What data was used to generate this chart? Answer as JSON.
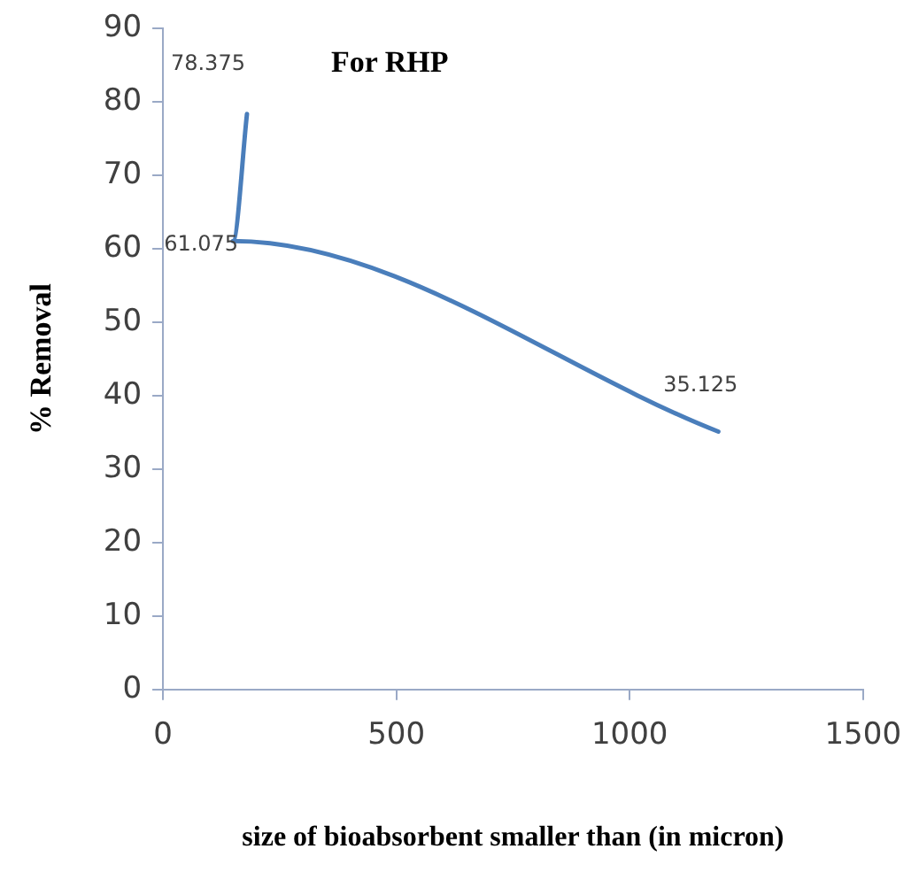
{
  "chart_data": {
    "type": "line",
    "title": "For RHP",
    "xlabel": "size of bioabsorbent smaller than (in micron)",
    "ylabel": "% Removal",
    "series": [
      {
        "color": "#4a7ebb",
        "x": [
          180,
          150,
          1190
        ],
        "values": [
          78.375,
          61.075,
          35.125
        ],
        "value_labels": [
          "78.375",
          "61.075",
          "35.125"
        ]
      }
    ],
    "xlim": [
      0,
      1500
    ],
    "xticks": [
      0,
      500,
      1000,
      1500
    ],
    "ylim": [
      0,
      90
    ],
    "yticks": [
      0,
      10,
      20,
      30,
      40,
      50,
      60,
      70,
      80,
      90
    ],
    "grid": false,
    "legend": false,
    "marker": "none",
    "line_style": "solid"
  }
}
